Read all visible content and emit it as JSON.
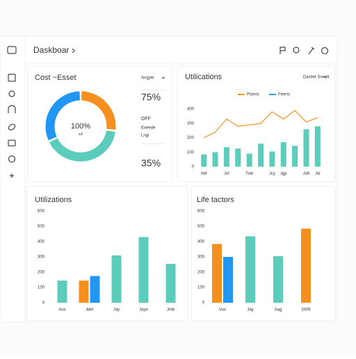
{
  "header": {
    "title": "Daskboar"
  },
  "chart_data": [
    {
      "type": "pie",
      "title": "Cost ~Esset",
      "donut": true,
      "values": [
        27,
        41,
        32
      ],
      "colors": [
        "#f5901e",
        "#5ccdbd",
        "#2196f3"
      ],
      "center_label": "100%",
      "center_sublabel": "ust",
      "dropdown": "Angyie",
      "annotations": [
        {
          "text": "75%",
          "color": "#f5901e"
        },
        {
          "text": "OFF",
          "color": "#333333"
        },
        {
          "text": "Exeede",
          "color": "#555555"
        },
        {
          "text": "Lngi",
          "color": "#555555"
        },
        {
          "text": "35%",
          "color": "#222222"
        }
      ]
    },
    {
      "type": "bar",
      "title": "Utilications",
      "dropdown": "Dastlet Sneelt",
      "categories": [
        "Aet",
        null,
        "Jul",
        null,
        "Twe",
        null,
        "Jcy",
        "Jgp",
        null,
        "Jd4",
        "Jol"
      ],
      "series": [
        {
          "name": "Poerst",
          "color": "#f5901e",
          "type": "line",
          "values": [
            200,
            240,
            330,
            280,
            290,
            300,
            380,
            330,
            390,
            310,
            340
          ]
        },
        {
          "name": "Feerst",
          "color": "#5ccdbd",
          "legend_color": "#2196f3",
          "values": [
            85,
            100,
            135,
            125,
            90,
            160,
            105,
            170,
            145,
            260,
            280
          ]
        }
      ],
      "ylim": [
        0,
        400
      ],
      "yticks": [
        0,
        100,
        200,
        300,
        400
      ],
      "grid": false
    },
    {
      "type": "bar",
      "title": "Utilizations",
      "categories": [
        "Aus",
        "Jdel",
        "Jay",
        "Jaye",
        "Jmb"
      ],
      "series": [
        {
          "color": "#5ccdbd",
          "values": [
            145,
            null,
            310,
            430,
            255
          ]
        },
        {
          "color": "#f5901e",
          "values": [
            null,
            145,
            null,
            null,
            null
          ]
        },
        {
          "color": "#2196f3",
          "values": [
            null,
            175,
            null,
            null,
            null
          ]
        }
      ],
      "ylim": [
        0,
        600
      ],
      "yticks": [
        0,
        100,
        200,
        300,
        400,
        500,
        600
      ],
      "grid": false
    },
    {
      "type": "bar",
      "title": "Life tactors",
      "categories": [
        "Vus",
        "Jay",
        "Aag",
        "2006"
      ],
      "series": [
        {
          "color": "#f5901e",
          "values": [
            385,
            null,
            null,
            485
          ]
        },
        {
          "color": "#2196f3",
          "values": [
            300,
            null,
            null,
            null
          ]
        },
        {
          "color": "#5ccdbd",
          "values": [
            null,
            435,
            305,
            null
          ]
        }
      ],
      "ylim": [
        0,
        600
      ],
      "yticks": [
        0,
        100,
        200,
        300,
        400,
        500,
        600
      ],
      "grid": false
    }
  ]
}
